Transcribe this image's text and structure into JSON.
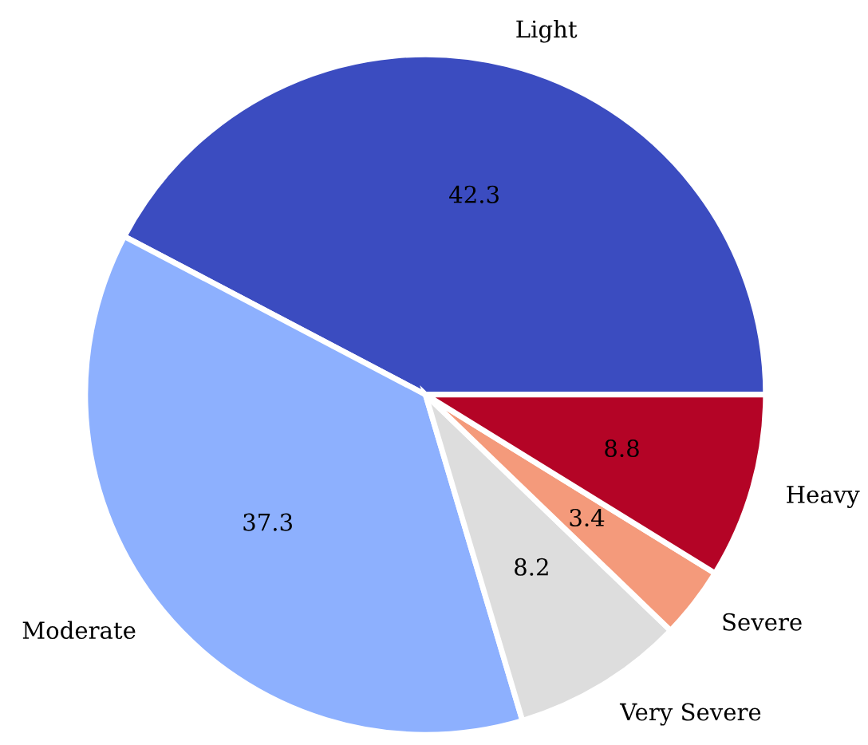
{
  "chart_data": {
    "type": "pie",
    "categories": [
      "Light",
      "Moderate",
      "Very Severe",
      "Severe",
      "Heavy"
    ],
    "values": [
      42.3,
      37.3,
      8.2,
      3.4,
      8.8
    ],
    "colors": [
      "#3b4cc0",
      "#8db0fe",
      "#dddddd",
      "#f49a7b",
      "#b40426"
    ],
    "data_labels": true
  }
}
